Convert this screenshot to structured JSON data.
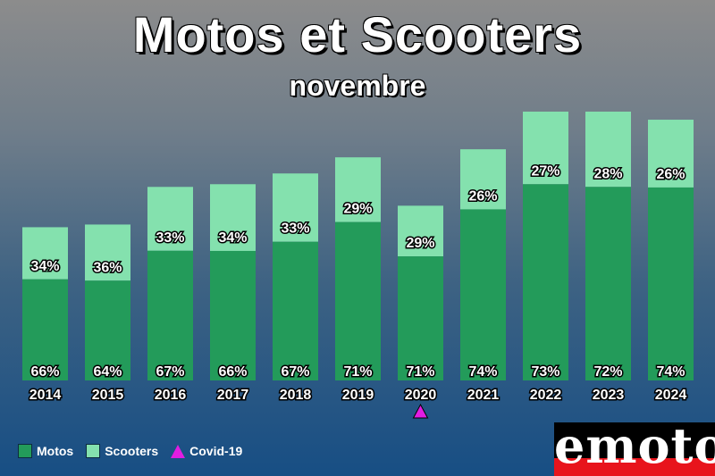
{
  "title": "Motos et Scooters",
  "subtitle": "novembre",
  "legend": {
    "motos": "Motos",
    "scooters": "Scooters",
    "covid": "Covid-19"
  },
  "logo": "emoto",
  "colors": {
    "motos": "#239b5a",
    "scooters": "#84e1ae",
    "covid": "#e21de2",
    "logo_red": "#e8141c"
  },
  "chart_data": {
    "type": "bar",
    "stacked": true,
    "categories": [
      "2014",
      "2015",
      "2016",
      "2017",
      "2018",
      "2019",
      "2020",
      "2021",
      "2022",
      "2023",
      "2024"
    ],
    "series": [
      {
        "name": "Motos",
        "percent_labels": [
          "66%",
          "64%",
          "67%",
          "66%",
          "67%",
          "71%",
          "71%",
          "74%",
          "73%",
          "72%",
          "74%"
        ]
      },
      {
        "name": "Scooters",
        "percent_labels": [
          "34%",
          "36%",
          "33%",
          "34%",
          "33%",
          "29%",
          "29%",
          "26%",
          "27%",
          "28%",
          "26%"
        ]
      }
    ],
    "relative_totals": [
      0.57,
      0.58,
      0.72,
      0.73,
      0.77,
      0.83,
      0.65,
      0.86,
      1.0,
      1.0,
      0.97
    ],
    "annotations": [
      {
        "category": "2020",
        "marker": "triangle",
        "label": "Covid-19"
      }
    ]
  }
}
